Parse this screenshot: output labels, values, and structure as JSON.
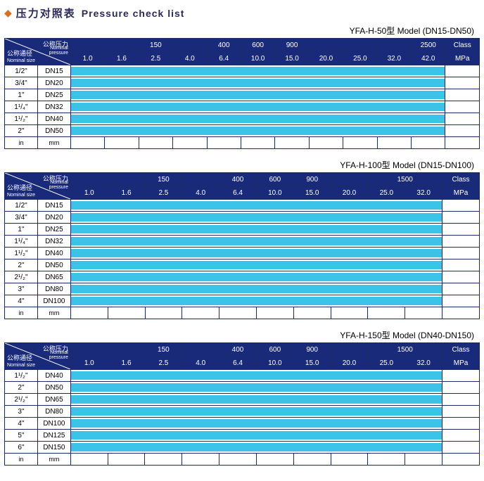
{
  "title": {
    "diamond": "◆",
    "cn": "压力对照表",
    "en": "Pressure check list"
  },
  "colors": {
    "header": "#1a2a7a",
    "border": "#1a2a6a",
    "bar": "#3cc4e8",
    "diamond": "#d97020"
  },
  "corner": {
    "top_cn": "公称压力",
    "top_en1": "Nominal",
    "top_en2": "pressure",
    "bot_cn": "公称通径",
    "bot_en": "Nominal size"
  },
  "footer": {
    "in": "in",
    "mm": "mm"
  },
  "tables": [
    {
      "model": "YFA-H-50型  Model (DN15-DN50)",
      "class_groups": [
        {
          "label": "",
          "span": 2
        },
        {
          "label": "150",
          "span": 1
        },
        {
          "label": "",
          "span": 1
        },
        {
          "label": "400",
          "span": 1
        },
        {
          "label": "600",
          "span": 1
        },
        {
          "label": "900",
          "span": 1
        },
        {
          "label": "",
          "span": 1
        },
        {
          "label": "",
          "span": 1
        },
        {
          "label": "",
          "span": 1
        },
        {
          "label": "2500",
          "span": 1
        },
        {
          "label": "Class",
          "span": 1
        }
      ],
      "mpa": [
        "1.0",
        "1.6",
        "2.5",
        "4.0",
        "6.4",
        "10.0",
        "15.0",
        "20.0",
        "25.0",
        "32.0",
        "42.0",
        "MPa"
      ],
      "rows": [
        {
          "in": "1/2\"",
          "mm": "DN15",
          "bar": 11
        },
        {
          "in": "3/4\"",
          "mm": "DN20",
          "bar": 11
        },
        {
          "in": "1\"",
          "mm": "DN25",
          "bar": 11
        },
        {
          "in": "1¹/₄\"",
          "mm": "DN32",
          "bar": 11
        },
        {
          "in": "1¹/₂\"",
          "mm": "DN40",
          "bar": 11
        },
        {
          "in": "2\"",
          "mm": "DN50",
          "bar": 11
        }
      ],
      "total_cols": 12
    },
    {
      "model": "YFA-H-100型  Model (DN15-DN100)",
      "class_groups": [
        {
          "label": "",
          "span": 2
        },
        {
          "label": "150",
          "span": 1
        },
        {
          "label": "",
          "span": 1
        },
        {
          "label": "400",
          "span": 1
        },
        {
          "label": "600",
          "span": 1
        },
        {
          "label": "900",
          "span": 1
        },
        {
          "label": "",
          "span": 1
        },
        {
          "label": "1500",
          "span": 2
        },
        {
          "label": "Class",
          "span": 1
        }
      ],
      "mpa": [
        "1.0",
        "1.6",
        "2.5",
        "4.0",
        "6.4",
        "10.0",
        "15.0",
        "20.0",
        "25.0",
        "32.0",
        "MPa"
      ],
      "rows": [
        {
          "in": "1/2\"",
          "mm": "DN15",
          "bar": 10
        },
        {
          "in": "3/4\"",
          "mm": "DN20",
          "bar": 10
        },
        {
          "in": "1\"",
          "mm": "DN25",
          "bar": 10
        },
        {
          "in": "1¹/₄\"",
          "mm": "DN32",
          "bar": 10
        },
        {
          "in": "1¹/₂\"",
          "mm": "DN40",
          "bar": 10
        },
        {
          "in": "2\"",
          "mm": "DN50",
          "bar": 10
        },
        {
          "in": "2¹/₂\"",
          "mm": "DN65",
          "bar": 10
        },
        {
          "in": "3\"",
          "mm": "DN80",
          "bar": 10
        },
        {
          "in": "4\"",
          "mm": "DN100",
          "bar": 10
        }
      ],
      "total_cols": 11
    },
    {
      "model": "YFA-H-150型  Model (DN40-DN150)",
      "class_groups": [
        {
          "label": "",
          "span": 2
        },
        {
          "label": "150",
          "span": 1
        },
        {
          "label": "",
          "span": 1
        },
        {
          "label": "400",
          "span": 1
        },
        {
          "label": "600",
          "span": 1
        },
        {
          "label": "900",
          "span": 1
        },
        {
          "label": "",
          "span": 1
        },
        {
          "label": "1500",
          "span": 2
        },
        {
          "label": "Class",
          "span": 1
        }
      ],
      "mpa": [
        "1.0",
        "1.6",
        "2.5",
        "4.0",
        "6.4",
        "10.0",
        "15.0",
        "20.0",
        "25.0",
        "32.0",
        "MPa"
      ],
      "rows": [
        {
          "in": "1¹/₂\"",
          "mm": "DN40",
          "bar": 10
        },
        {
          "in": "2\"",
          "mm": "DN50",
          "bar": 10
        },
        {
          "in": "2¹/₂\"",
          "mm": "DN65",
          "bar": 10
        },
        {
          "in": "3\"",
          "mm": "DN80",
          "bar": 10
        },
        {
          "in": "4\"",
          "mm": "DN100",
          "bar": 10
        },
        {
          "in": "5\"",
          "mm": "DN125",
          "bar": 10
        },
        {
          "in": "6\"",
          "mm": "DN150",
          "bar": 10
        }
      ],
      "total_cols": 11
    }
  ]
}
